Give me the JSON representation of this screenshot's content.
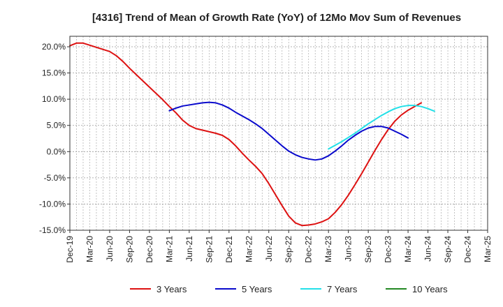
{
  "chart_data": {
    "type": "line",
    "title": "[4316]  Trend of Mean of Growth Rate (YoY) of 12Mo Mov Sum of Revenues",
    "xlabel": "",
    "ylabel": "",
    "x_tick_labels": [
      "Dec-19",
      "Mar-20",
      "Jun-20",
      "Sep-20",
      "Dec-20",
      "Mar-21",
      "Jun-21",
      "Sep-21",
      "Dec-21",
      "Mar-22",
      "Jun-22",
      "Sep-22",
      "Dec-22",
      "Mar-23",
      "Jun-23",
      "Sep-23",
      "Dec-23",
      "Mar-24",
      "Jun-24",
      "Sep-24",
      "Dec-24",
      "Mar-25"
    ],
    "y_tick_labels": [
      "20.0%",
      "15.0%",
      "10.0%",
      "5.0%",
      "0.0%",
      "-5.0%",
      "-10.0%",
      "-15.0%"
    ],
    "y_tick_values": [
      20,
      15,
      10,
      5,
      0,
      -5,
      -10,
      -15
    ],
    "ylim": [
      -15,
      22
    ],
    "x_range_months": [
      0,
      63
    ],
    "grid": true,
    "legend_position": "bottom",
    "series": [
      {
        "name": "3 Years",
        "color": "#dd1111",
        "start_month": 0,
        "values": [
          20.2,
          20.7,
          20.7,
          20.3,
          19.9,
          19.5,
          19.1,
          18.3,
          17.2,
          15.9,
          14.7,
          13.5,
          12.3,
          11.1,
          9.9,
          8.6,
          7.4,
          6.0,
          5.0,
          4.4,
          4.1,
          3.8,
          3.5,
          3.1,
          2.3,
          1.1,
          -0.3,
          -1.6,
          -2.8,
          -4.2,
          -6.1,
          -8.2,
          -10.3,
          -12.3,
          -13.6,
          -14.1,
          -14.0,
          -13.8,
          -13.4,
          -12.8,
          -11.6,
          -10.1,
          -8.3,
          -6.3,
          -4.2,
          -2.0,
          0.2,
          2.3,
          4.2,
          5.8,
          7.0,
          7.9,
          8.6,
          9.3
        ]
      },
      {
        "name": "5 Years",
        "color": "#0a0acc",
        "start_month": 15,
        "values": [
          7.8,
          8.3,
          8.7,
          8.9,
          9.1,
          9.3,
          9.4,
          9.3,
          8.9,
          8.3,
          7.5,
          6.8,
          6.1,
          5.3,
          4.4,
          3.3,
          2.2,
          1.1,
          0.1,
          -0.6,
          -1.1,
          -1.4,
          -1.6,
          -1.4,
          -0.8,
          0.1,
          1.1,
          2.2,
          3.1,
          3.9,
          4.5,
          4.8,
          4.8,
          4.5,
          3.9,
          3.3,
          2.6
        ]
      },
      {
        "name": "7 Years",
        "color": "#22e0e8",
        "start_month": 39,
        "values": [
          0.5,
          1.2,
          1.9,
          2.7,
          3.5,
          4.4,
          5.3,
          6.1,
          6.9,
          7.6,
          8.2,
          8.6,
          8.8,
          8.8,
          8.6,
          8.2,
          7.7
        ]
      },
      {
        "name": "10 Years",
        "color": "#228822",
        "start_month": null,
        "values": []
      }
    ]
  }
}
